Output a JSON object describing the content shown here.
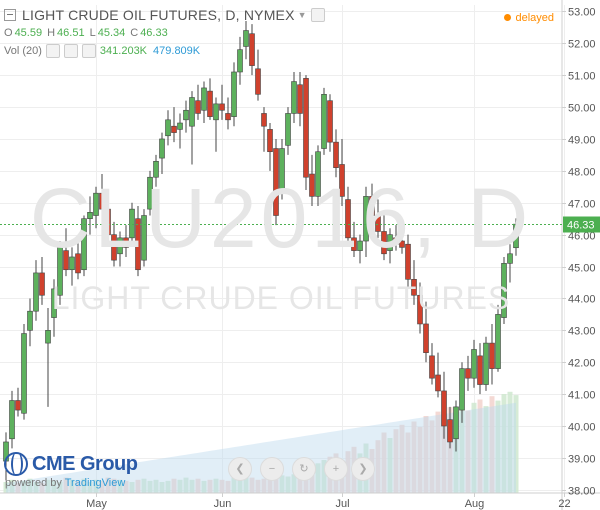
{
  "header": {
    "title": "LIGHT CRUDE OIL FUTURES, D, NYMEX",
    "ohlc": {
      "o_label": "O",
      "o": "45.59",
      "h_label": "H",
      "h": "46.51",
      "l_label": "L",
      "l": "45.34",
      "c_label": "C",
      "c": "46.33"
    },
    "volume": {
      "label": "Vol (20)",
      "v1": "341.203K",
      "v2": "479.809K"
    },
    "status": "delayed"
  },
  "watermark": {
    "symbol": "CLU2016, D",
    "name": "LIGHT CRUDE OIL FUTURES"
  },
  "branding": {
    "name": "CME Group",
    "powered_prefix": "powered by ",
    "powered_by": "TradingView"
  },
  "colors": {
    "up": "#5db15d",
    "down": "#d0412d",
    "price_tag": "#4caf50",
    "accent": "#ff8c00"
  },
  "icons": [
    "collapse-icon",
    "settings-icon",
    "eye-icon",
    "close-icon",
    "zoom-out-icon",
    "zoom-in-icon",
    "reset-icon",
    "scroll-left-icon",
    "scroll-right-icon"
  ],
  "chart_data": {
    "type": "candlestick",
    "y_ticks": [
      "53.00",
      "52.00",
      "51.00",
      "50.00",
      "49.00",
      "48.00",
      "47.00",
      "46.00",
      "45.00",
      "44.00",
      "43.00",
      "42.00",
      "41.00",
      "40.00",
      "39.00",
      "38.00"
    ],
    "ylim": [
      37.9,
      53.2
    ],
    "x_ticks": [
      {
        "label": "May",
        "index": 15
      },
      {
        "label": "Jun",
        "index": 36
      },
      {
        "label": "Jul",
        "index": 56
      },
      {
        "label": "Aug",
        "index": 78
      },
      {
        "label": "22",
        "index": 93
      }
    ],
    "last_price": "46.33",
    "candles": [
      {
        "o": 38.9,
        "h": 39.8,
        "l": 38.3,
        "c": 39.5
      },
      {
        "o": 39.6,
        "h": 41.1,
        "l": 39.3,
        "c": 40.8
      },
      {
        "o": 40.8,
        "h": 41.2,
        "l": 40.3,
        "c": 40.5
      },
      {
        "o": 40.4,
        "h": 43.2,
        "l": 40.2,
        "c": 42.9
      },
      {
        "o": 43.0,
        "h": 44.0,
        "l": 42.5,
        "c": 43.6
      },
      {
        "o": 43.6,
        "h": 45.2,
        "l": 43.3,
        "c": 44.8
      },
      {
        "o": 44.8,
        "h": 45.3,
        "l": 43.8,
        "c": 44.1
      },
      {
        "o": 42.6,
        "h": 43.7,
        "l": 40.6,
        "c": 43.0
      },
      {
        "o": 43.4,
        "h": 44.6,
        "l": 42.8,
        "c": 44.3
      },
      {
        "o": 44.1,
        "h": 45.8,
        "l": 43.8,
        "c": 45.6
      },
      {
        "o": 45.5,
        "h": 46.2,
        "l": 44.7,
        "c": 44.9
      },
      {
        "o": 44.9,
        "h": 45.6,
        "l": 44.4,
        "c": 45.3
      },
      {
        "o": 45.4,
        "h": 46.0,
        "l": 44.6,
        "c": 44.8
      },
      {
        "o": 44.9,
        "h": 46.6,
        "l": 44.7,
        "c": 46.5
      },
      {
        "o": 46.5,
        "h": 47.2,
        "l": 46.0,
        "c": 46.7
      },
      {
        "o": 46.6,
        "h": 47.5,
        "l": 46.2,
        "c": 47.3
      },
      {
        "o": 47.3,
        "h": 47.9,
        "l": 46.6,
        "c": 46.8
      },
      {
        "o": 46.8,
        "h": 47.2,
        "l": 45.9,
        "c": 46.0
      },
      {
        "o": 46.0,
        "h": 46.4,
        "l": 45.0,
        "c": 45.2
      },
      {
        "o": 45.4,
        "h": 46.1,
        "l": 45.0,
        "c": 45.9
      },
      {
        "o": 45.9,
        "h": 46.3,
        "l": 45.3,
        "c": 45.6
      },
      {
        "o": 45.9,
        "h": 47.0,
        "l": 45.7,
        "c": 46.8
      },
      {
        "o": 46.5,
        "h": 46.9,
        "l": 44.7,
        "c": 44.9
      },
      {
        "o": 45.2,
        "h": 46.8,
        "l": 45.0,
        "c": 46.6
      },
      {
        "o": 46.8,
        "h": 48.0,
        "l": 46.6,
        "c": 47.8
      },
      {
        "o": 47.8,
        "h": 48.5,
        "l": 47.5,
        "c": 48.3
      },
      {
        "o": 48.4,
        "h": 49.2,
        "l": 47.9,
        "c": 49.0
      },
      {
        "o": 49.1,
        "h": 49.9,
        "l": 48.8,
        "c": 49.6
      },
      {
        "o": 49.4,
        "h": 50.0,
        "l": 48.9,
        "c": 49.2
      },
      {
        "o": 49.3,
        "h": 49.8,
        "l": 48.7,
        "c": 49.5
      },
      {
        "o": 49.6,
        "h": 50.2,
        "l": 49.2,
        "c": 49.9
      },
      {
        "o": 49.4,
        "h": 50.5,
        "l": 48.2,
        "c": 50.3
      },
      {
        "o": 50.2,
        "h": 50.7,
        "l": 49.6,
        "c": 49.8
      },
      {
        "o": 49.9,
        "h": 50.8,
        "l": 49.5,
        "c": 50.6
      },
      {
        "o": 50.5,
        "h": 50.9,
        "l": 49.6,
        "c": 49.7
      },
      {
        "o": 49.6,
        "h": 50.3,
        "l": 48.6,
        "c": 50.1
      },
      {
        "o": 50.1,
        "h": 50.7,
        "l": 49.6,
        "c": 49.9
      },
      {
        "o": 49.8,
        "h": 50.3,
        "l": 49.3,
        "c": 49.6
      },
      {
        "o": 49.7,
        "h": 51.4,
        "l": 49.4,
        "c": 51.1
      },
      {
        "o": 51.1,
        "h": 52.2,
        "l": 50.7,
        "c": 51.8
      },
      {
        "o": 51.9,
        "h": 52.7,
        "l": 51.5,
        "c": 52.4
      },
      {
        "o": 52.3,
        "h": 52.6,
        "l": 51.0,
        "c": 51.3
      },
      {
        "o": 51.2,
        "h": 51.8,
        "l": 50.2,
        "c": 50.4
      },
      {
        "o": 49.8,
        "h": 50.0,
        "l": 48.6,
        "c": 49.4
      },
      {
        "o": 49.3,
        "h": 49.5,
        "l": 48.0,
        "c": 48.6
      },
      {
        "o": 48.7,
        "h": 49.0,
        "l": 46.3,
        "c": 46.6
      },
      {
        "o": 47.4,
        "h": 49.0,
        "l": 47.1,
        "c": 48.7
      },
      {
        "o": 48.8,
        "h": 50.0,
        "l": 48.5,
        "c": 49.8
      },
      {
        "o": 49.8,
        "h": 51.1,
        "l": 49.5,
        "c": 50.8
      },
      {
        "o": 50.7,
        "h": 51.1,
        "l": 49.4,
        "c": 49.8
      },
      {
        "o": 50.9,
        "h": 51.0,
        "l": 47.4,
        "c": 47.8
      },
      {
        "o": 47.9,
        "h": 48.5,
        "l": 46.9,
        "c": 47.2
      },
      {
        "o": 47.2,
        "h": 48.8,
        "l": 46.9,
        "c": 48.6
      },
      {
        "o": 48.7,
        "h": 50.6,
        "l": 48.5,
        "c": 50.4
      },
      {
        "o": 50.2,
        "h": 50.4,
        "l": 48.6,
        "c": 48.9
      },
      {
        "o": 48.9,
        "h": 49.3,
        "l": 47.8,
        "c": 48.1
      },
      {
        "o": 48.2,
        "h": 49.0,
        "l": 46.9,
        "c": 47.2
      },
      {
        "o": 47.1,
        "h": 47.5,
        "l": 45.7,
        "c": 45.9
      },
      {
        "o": 45.9,
        "h": 46.4,
        "l": 45.3,
        "c": 45.5
      },
      {
        "o": 45.5,
        "h": 46.0,
        "l": 45.1,
        "c": 45.8
      },
      {
        "o": 45.8,
        "h": 47.5,
        "l": 45.3,
        "c": 47.2
      },
      {
        "o": 47.2,
        "h": 47.6,
        "l": 46.5,
        "c": 46.6
      },
      {
        "o": 46.6,
        "h": 47.1,
        "l": 45.9,
        "c": 46.1
      },
      {
        "o": 46.1,
        "h": 46.6,
        "l": 45.2,
        "c": 45.4
      },
      {
        "o": 45.5,
        "h": 46.2,
        "l": 45.1,
        "c": 46.0
      },
      {
        "o": 45.9,
        "h": 46.3,
        "l": 45.5,
        "c": 45.7
      },
      {
        "o": 45.8,
        "h": 46.5,
        "l": 45.4,
        "c": 45.6
      },
      {
        "o": 45.7,
        "h": 46.0,
        "l": 44.3,
        "c": 44.6
      },
      {
        "o": 44.6,
        "h": 45.2,
        "l": 43.8,
        "c": 44.1
      },
      {
        "o": 44.1,
        "h": 44.5,
        "l": 42.9,
        "c": 43.2
      },
      {
        "o": 43.2,
        "h": 43.9,
        "l": 42.0,
        "c": 42.3
      },
      {
        "o": 42.2,
        "h": 42.6,
        "l": 41.3,
        "c": 41.5
      },
      {
        "o": 41.6,
        "h": 42.3,
        "l": 40.9,
        "c": 41.1
      },
      {
        "o": 41.1,
        "h": 41.7,
        "l": 39.6,
        "c": 40.0
      },
      {
        "o": 40.2,
        "h": 40.6,
        "l": 39.3,
        "c": 39.5
      },
      {
        "o": 39.6,
        "h": 40.8,
        "l": 39.2,
        "c": 40.6
      },
      {
        "o": 40.5,
        "h": 42.0,
        "l": 40.1,
        "c": 41.8
      },
      {
        "o": 41.8,
        "h": 42.2,
        "l": 41.1,
        "c": 41.5
      },
      {
        "o": 41.5,
        "h": 42.7,
        "l": 41.2,
        "c": 42.4
      },
      {
        "o": 42.2,
        "h": 42.6,
        "l": 41.0,
        "c": 41.3
      },
      {
        "o": 41.3,
        "h": 42.8,
        "l": 41.1,
        "c": 42.6
      },
      {
        "o": 42.6,
        "h": 43.2,
        "l": 41.3,
        "c": 41.8
      },
      {
        "o": 41.8,
        "h": 43.8,
        "l": 41.7,
        "c": 43.5
      },
      {
        "o": 43.4,
        "h": 45.3,
        "l": 43.2,
        "c": 45.1
      },
      {
        "o": 45.1,
        "h": 45.7,
        "l": 44.5,
        "c": 45.4
      },
      {
        "o": 45.59,
        "h": 46.51,
        "l": 45.34,
        "c": 46.33
      }
    ],
    "volume": [
      0.1,
      0.12,
      0.09,
      0.11,
      0.13,
      0.1,
      0.09,
      0.12,
      0.11,
      0.1,
      0.14,
      0.12,
      0.11,
      0.13,
      0.1,
      0.12,
      0.11,
      0.14,
      0.13,
      0.12,
      0.11,
      0.1,
      0.12,
      0.13,
      0.11,
      0.12,
      0.1,
      0.11,
      0.13,
      0.12,
      0.14,
      0.12,
      0.13,
      0.11,
      0.12,
      0.13,
      0.12,
      0.11,
      0.14,
      0.13,
      0.15,
      0.14,
      0.12,
      0.13,
      0.15,
      0.14,
      0.16,
      0.15,
      0.17,
      0.18,
      0.22,
      0.25,
      0.27,
      0.3,
      0.33,
      0.36,
      0.3,
      0.38,
      0.42,
      0.36,
      0.45,
      0.4,
      0.48,
      0.55,
      0.5,
      0.58,
      0.62,
      0.55,
      0.65,
      0.6,
      0.7,
      0.66,
      0.74,
      0.7,
      0.78,
      0.72,
      0.8,
      0.75,
      0.82,
      0.85,
      0.79,
      0.88,
      0.84,
      0.9,
      0.92,
      0.89
    ]
  }
}
